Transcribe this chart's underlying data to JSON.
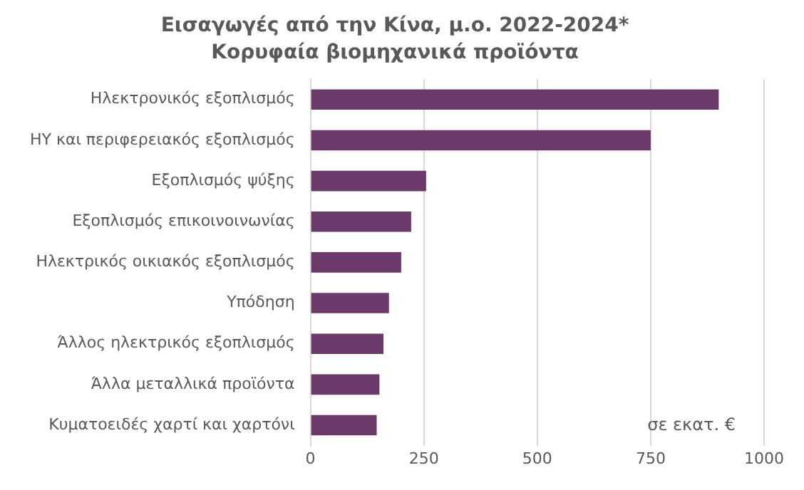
{
  "chart_data": {
    "type": "bar",
    "orientation": "horizontal",
    "title": "Εισαγωγές από την Κίνα, μ.ο. 2022-2024*",
    "subtitle": "Κορυφαία βιομηχανικά προϊόντα",
    "categories": [
      "Ηλεκτρονικός εξοπλισμός",
      "ΗΥ και περιφερειακός εξοπλισμός",
      "Εξοπλισμός ψύξης",
      "Εξοπλισμός επικοινοινωνίας",
      "Ηλεκτρικός οικιακός εξοπλισμός",
      "Υπόδηση",
      "Άλλος ηλεκτρικός εξοπλισμός",
      "Άλλα μεταλλικά προϊόντα",
      "Κυματοειδές χαρτί και χαρτόνι"
    ],
    "values": [
      900,
      750,
      255,
      222,
      200,
      173,
      161,
      152,
      146
    ],
    "color": "#6b3a6b",
    "xlim": [
      0,
      1000
    ],
    "xticks": [
      0,
      250,
      500,
      750,
      1000
    ],
    "grid": "x",
    "annotations": [
      "σε εκατ. €"
    ]
  }
}
